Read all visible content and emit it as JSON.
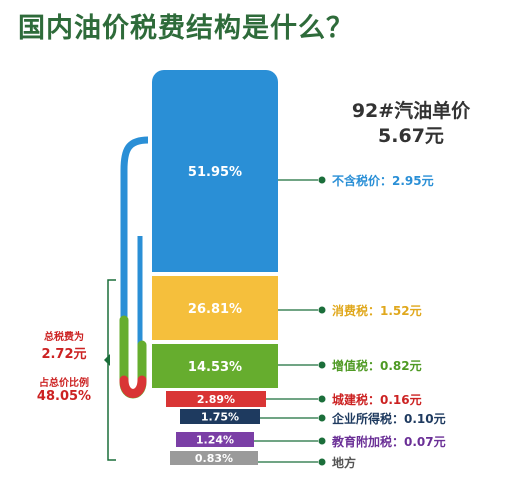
{
  "title": "国内油价税费结构是什么？",
  "product": {
    "name": "92#汽油单价",
    "price": "5.67元"
  },
  "side_notes": {
    "total_label": "总税费为",
    "total_value": "2.72元",
    "percent_label": "占总价比例",
    "percent_value": "48.05%"
  },
  "chart_data": {
    "type": "bar",
    "title": "国内油价税费结构是什么？",
    "unit": "元",
    "total_price": 5.67,
    "total_tax": 2.72,
    "tax_share_pct": 48.05,
    "segments": [
      {
        "pct_label": "51.95%",
        "pct": 51.95,
        "name": "不含税价",
        "value": 2.95,
        "value_label": "2.95元",
        "color": "#2a8fd6",
        "label_color": "#2a8fd6"
      },
      {
        "pct_label": "26.81%",
        "pct": 26.81,
        "name": "消费税",
        "value": 1.52,
        "value_label": "1.52元",
        "color": "#f5bf3c",
        "label_color": "#e0a81d"
      },
      {
        "pct_label": "14.53%",
        "pct": 14.53,
        "name": "增值税",
        "value": 0.82,
        "value_label": "0.82元",
        "color": "#66ad2e",
        "label_color": "#4f9a24"
      },
      {
        "pct_label": "2.89%",
        "pct": 2.89,
        "name": "城建税",
        "value": 0.16,
        "value_label": "0.16元",
        "color": "#d93535",
        "label_color": "#cc2222"
      },
      {
        "pct_label": "1.75%",
        "pct": 1.75,
        "name": "企业所得税",
        "value": 0.1,
        "value_label": "0.10元",
        "color": "#1e3a5f",
        "label_color": "#1e3a5f"
      },
      {
        "pct_label": "1.24%",
        "pct": 1.24,
        "name": "教育附加税",
        "value": 0.07,
        "value_label": "0.07元",
        "color": "#7b3fa6",
        "label_color": "#6a2f96"
      },
      {
        "pct_label": "0.83%",
        "pct": 0.83,
        "name": "地方",
        "value": null,
        "value_label": "",
        "color": "#9a9a9a",
        "label_color": "#555555"
      }
    ]
  }
}
